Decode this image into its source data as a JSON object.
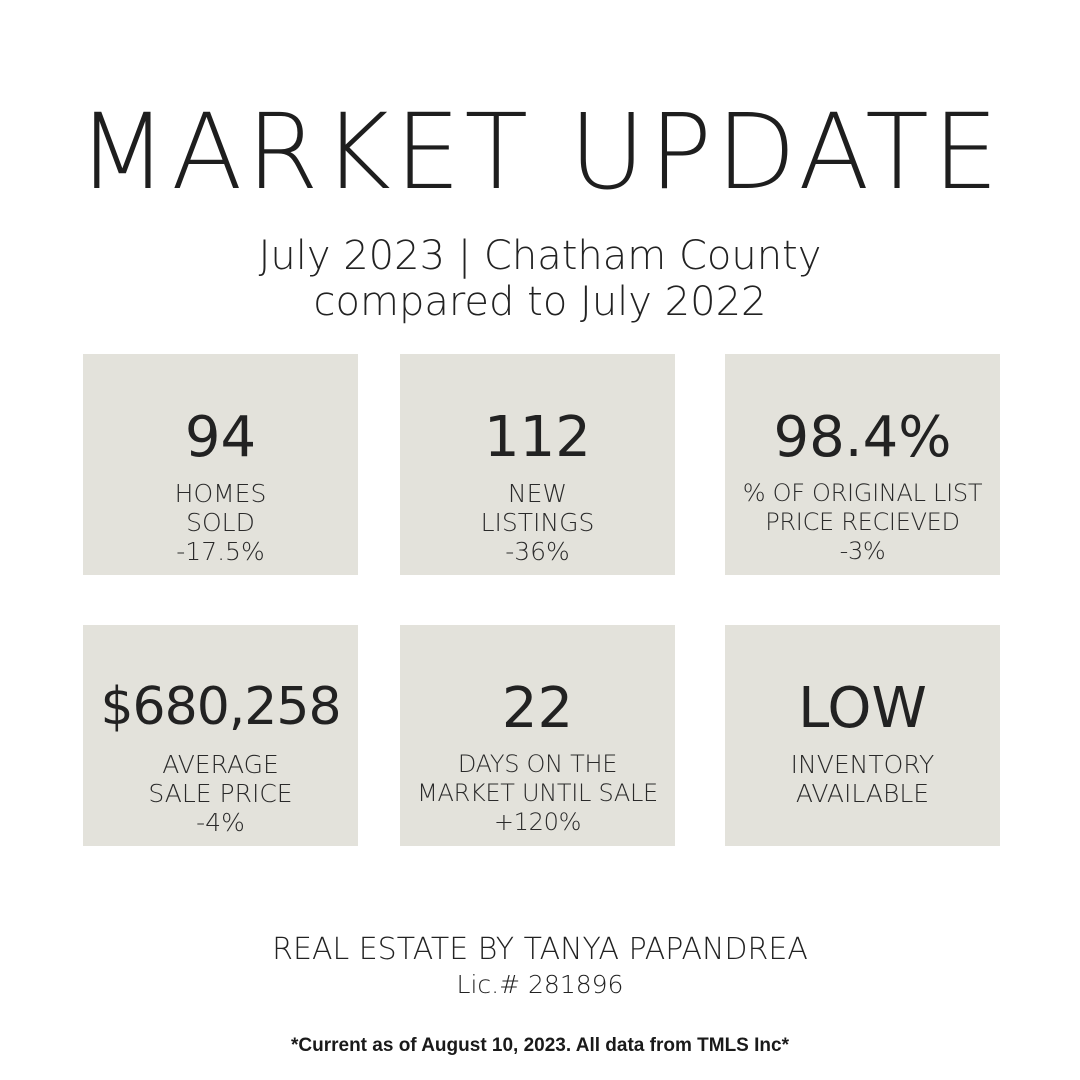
{
  "title": "MARKET UPDATE",
  "subtitle": {
    "line1": "July 2023 | Chatham County",
    "line2": "compared to July 2022"
  },
  "stats": [
    {
      "value": "94",
      "label_lines": [
        "HOMES",
        "SOLD",
        "-17.5%"
      ]
    },
    {
      "value": "112",
      "label_lines": [
        "NEW",
        "LISTINGS",
        "-36%"
      ]
    },
    {
      "value": "98.4%",
      "label_lines": [
        "% OF ORIGINAL LIST",
        "PRICE RECIEVED",
        "-3%"
      ]
    },
    {
      "value": "$680,258",
      "label_lines": [
        "AVERAGE",
        "SALE PRICE",
        "-4%"
      ]
    },
    {
      "value": "22",
      "label_lines": [
        "DAYS ON THE",
        "MARKET UNTIL SALE",
        "+120%"
      ]
    },
    {
      "value": "LOW",
      "label_lines": [
        "INVENTORY",
        "AVAILABLE"
      ]
    }
  ],
  "agent": "REAL ESTATE BY TANYA PAPANDREA",
  "license": "Lic.# 281896",
  "footnote": "*Current as of August 10, 2023. All data from TMLS Inc*",
  "colors": {
    "card_background": "#e3e2db",
    "text": "#222222",
    "page_background": "#ffffff"
  }
}
